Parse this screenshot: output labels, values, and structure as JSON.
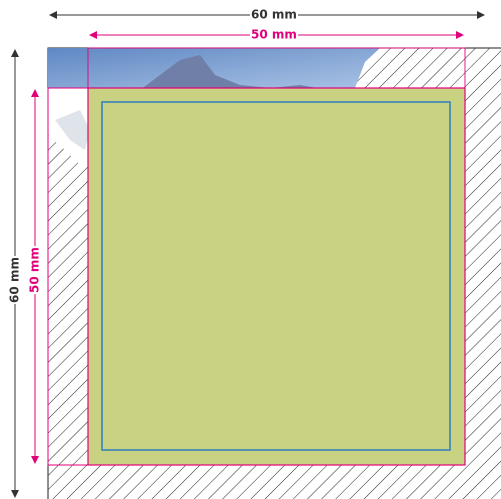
{
  "dimensions": {
    "outer_width": "60 mm",
    "inner_width": "50 mm",
    "outer_height": "60 mm",
    "inner_height": "50 mm"
  }
}
